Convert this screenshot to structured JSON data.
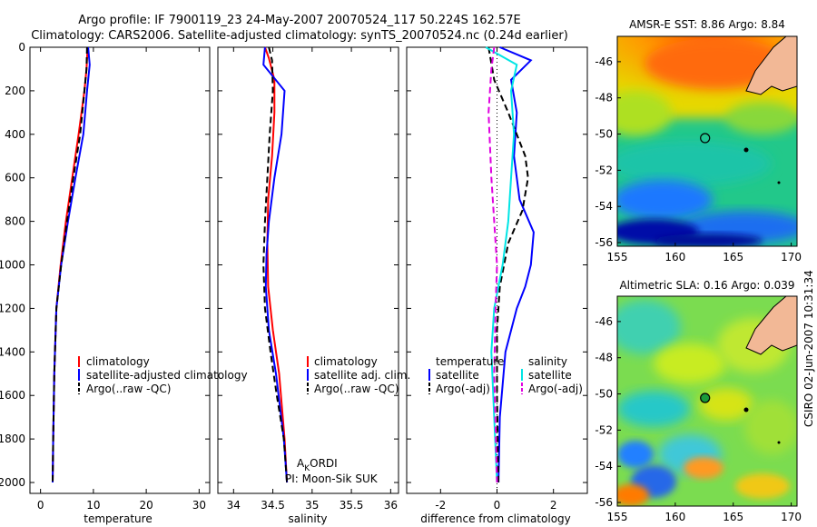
{
  "title_line1": "Argo profile: IF 7900119_23 24-May-2007 20070524_117 50.224S 162.57E",
  "title_line2": "Climatology: CARS2006. Satellite-adjusted climatology: synTS_20070524.nc (0.24d earlier)",
  "side_text": "CSIRO 02-Jun-2007 10:31:34",
  "colors": {
    "red": "#ff0000",
    "blue": "#0000ff",
    "black": "#000000",
    "cyan": "#00e5e5",
    "magenta": "#e000e0"
  },
  "chart_data": [
    {
      "type": "line",
      "xlabel": "temperature",
      "xlim": [
        -2,
        32
      ],
      "ylim": [
        0,
        2050
      ],
      "y_reversed": true,
      "xticks": [
        0,
        10,
        20,
        30
      ],
      "yticks": [
        0,
        200,
        400,
        600,
        800,
        1000,
        1200,
        1400,
        1600,
        1800,
        2000
      ],
      "legend": [
        "climatology",
        "satellite-adjusted climatology",
        "Argo(..raw -QC)"
      ],
      "series": [
        {
          "name": "climatology",
          "color": "red",
          "dash": "solid",
          "x": [
            8.9,
            8.7,
            8.3,
            7.2,
            6.0,
            4.8,
            3.8,
            3.0,
            2.6,
            2.4,
            2.3
          ],
          "y": [
            0,
            100,
            200,
            400,
            600,
            800,
            1000,
            1200,
            1500,
            1800,
            2000
          ]
        },
        {
          "name": "satellite-adjusted climatology",
          "color": "blue",
          "dash": "solid",
          "x": [
            9.0,
            9.3,
            8.8,
            8.1,
            6.6,
            5.2,
            3.9,
            3.0,
            2.6,
            2.4,
            2.3
          ],
          "y": [
            0,
            80,
            200,
            400,
            600,
            800,
            1000,
            1200,
            1500,
            1800,
            2000
          ]
        },
        {
          "name": "Argo(..raw -QC)",
          "color": "black",
          "dash": "dash",
          "x": [
            8.8,
            8.7,
            8.3,
            7.5,
            6.2,
            5.0,
            3.9,
            3.0,
            2.6,
            2.4,
            2.3
          ],
          "y": [
            0,
            100,
            200,
            400,
            600,
            800,
            1000,
            1200,
            1500,
            1800,
            2000
          ]
        }
      ]
    },
    {
      "type": "line",
      "xlabel": "salinity",
      "xlim": [
        33.8,
        36.1
      ],
      "ylim": [
        0,
        2050
      ],
      "y_reversed": true,
      "xticks": [
        34,
        34.5,
        35,
        35.5,
        36
      ],
      "legend": [
        "climatology",
        "satellite adj. clim.",
        "Argo(..raw -QC)"
      ],
      "annotation_1": "A",
      "annotation_1_sub": "K",
      "annotation_1_rest": "ORDI",
      "annotation_2": "PI: Moon-Sik SUK",
      "series": [
        {
          "name": "climatology",
          "color": "red",
          "dash": "solid",
          "x": [
            34.4,
            34.45,
            34.52,
            34.52,
            34.49,
            34.44,
            34.43,
            34.44,
            34.5,
            34.58,
            34.65,
            34.68
          ],
          "y": [
            0,
            50,
            150,
            300,
            500,
            700,
            900,
            1100,
            1300,
            1500,
            1800,
            2000
          ]
        },
        {
          "name": "satellite adj. clim.",
          "color": "blue",
          "dash": "solid",
          "x": [
            34.4,
            34.38,
            34.65,
            34.61,
            34.52,
            34.45,
            34.42,
            34.41,
            34.45,
            34.54,
            34.64,
            34.68
          ],
          "y": [
            0,
            80,
            200,
            400,
            600,
            800,
            950,
            1100,
            1300,
            1500,
            1800,
            2000
          ]
        },
        {
          "name": "Argo(..raw -QC)",
          "color": "black",
          "dash": "dash",
          "x": [
            34.45,
            34.49,
            34.5,
            34.46,
            34.43,
            34.4,
            34.38,
            34.4,
            34.47,
            34.55,
            34.64,
            34.68
          ],
          "y": [
            0,
            60,
            200,
            400,
            600,
            800,
            1000,
            1200,
            1400,
            1600,
            1800,
            2000
          ]
        }
      ]
    },
    {
      "type": "line",
      "xlabel": "difference from climatology",
      "xlim": [
        -3.2,
        3.2
      ],
      "ylim": [
        0,
        2050
      ],
      "y_reversed": true,
      "xticks": [
        -2,
        0,
        2
      ],
      "legend_title_1": "temperature",
      "legend_title_2": "salinity",
      "legend_1": [
        "satellite",
        "Argo(-adj)"
      ],
      "legend_2": [
        "satellite",
        "Argo(-adj)"
      ],
      "series": [
        {
          "name": "satellite",
          "group": "temperature",
          "color": "blue",
          "dash": "solid",
          "x": [
            0.1,
            1.2,
            0.5,
            0.7,
            0.6,
            0.8,
            1.3,
            1.2,
            1.0,
            0.7,
            0.3,
            0.1,
            0.05
          ],
          "y": [
            0,
            60,
            150,
            300,
            500,
            700,
            850,
            1000,
            1100,
            1200,
            1400,
            1700,
            2000
          ]
        },
        {
          "name": "Argo(-adj)",
          "group": "temperature",
          "color": "black",
          "dash": "dash",
          "x": [
            -0.3,
            -0.1,
            0.4,
            1.0,
            1.1,
            0.9,
            0.4,
            0.1,
            0.0,
            0.0,
            0.05
          ],
          "y": [
            0,
            150,
            300,
            500,
            600,
            750,
            900,
            1100,
            1300,
            1600,
            2000
          ]
        },
        {
          "name": "satellite",
          "group": "salinity",
          "color": "cyan",
          "dash": "solid",
          "x": [
            -0.4,
            0.7,
            0.5,
            0.6,
            0.5,
            0.4,
            0.2,
            -0.1,
            -0.2,
            -0.1,
            0.0
          ],
          "y": [
            0,
            80,
            200,
            400,
            600,
            800,
            1000,
            1200,
            1400,
            1700,
            2000
          ]
        },
        {
          "name": "Argo(-adj)",
          "group": "salinity",
          "color": "magenta",
          "dash": "dash",
          "x": [
            -0.1,
            -0.2,
            -0.3,
            -0.2,
            -0.1,
            0.0,
            -0.05,
            -0.1,
            0.0
          ],
          "y": [
            0,
            100,
            300,
            600,
            800,
            1000,
            1200,
            1500,
            2000
          ]
        }
      ]
    },
    {
      "type": "heatmap",
      "title": "AMSR-E SST: 8.86 Argo: 8.84",
      "xlim": [
        155,
        170.5
      ],
      "ylim": [
        -56.2,
        -44.6
      ],
      "xticks": [
        155,
        160,
        165,
        170
      ],
      "yticks": [
        -46,
        -48,
        -50,
        -52,
        -54,
        -56
      ],
      "marker": [
        162.57,
        -50.224
      ],
      "colormap": "jet"
    },
    {
      "type": "heatmap",
      "title": "Altimetric SLA: 0.16 Argo: 0.039",
      "xlim": [
        155,
        170.5
      ],
      "ylim": [
        -56.2,
        -44.6
      ],
      "xticks": [
        155,
        160,
        165,
        170
      ],
      "yticks": [
        -46,
        -48,
        -50,
        -52,
        -54,
        -56
      ],
      "marker": [
        162.57,
        -50.224
      ],
      "colormap": "jet"
    }
  ]
}
